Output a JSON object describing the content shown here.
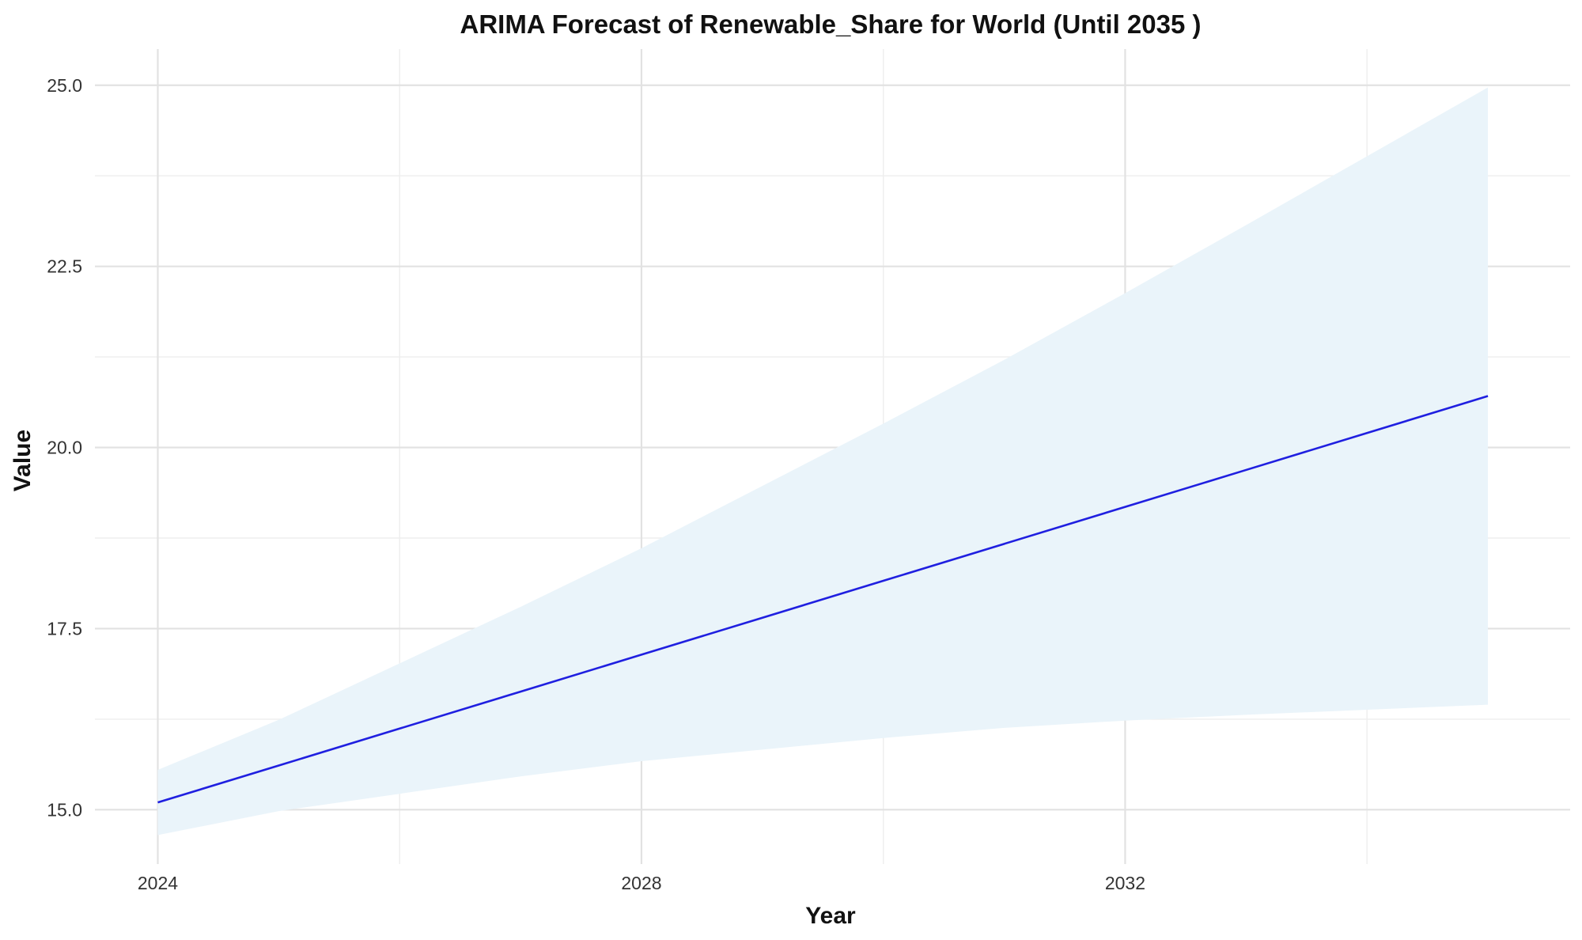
{
  "chart_data": {
    "type": "line",
    "title": "ARIMA Forecast of Renewable_Share for World (Until 2035 )",
    "xlabel": "Year",
    "ylabel": "Value",
    "xlim": [
      2023.48,
      2035.68
    ],
    "ylim": [
      14.25,
      25.5
    ],
    "x_ticks": [
      2024,
      2028,
      2032
    ],
    "x_tick_labels": [
      "2024",
      "2028",
      "2032"
    ],
    "x_minor_ticks": [
      2026,
      2030,
      2034
    ],
    "y_ticks": [
      15.0,
      17.5,
      20.0,
      22.5,
      25.0
    ],
    "y_tick_labels": [
      "15.0",
      "17.5",
      "20.0",
      "22.5",
      "25.0"
    ],
    "y_minor_ticks": [
      16.25,
      18.75,
      21.25,
      23.75
    ],
    "grid": true,
    "colors": {
      "line": "#1f1fe0",
      "band": "#eaf4fa",
      "grid_major": "#e2e2e2",
      "grid_minor": "#eeeeee"
    },
    "series": [
      {
        "x": [
          2024,
          2025,
          2026,
          2027,
          2028,
          2029,
          2030,
          2031,
          2032,
          2033,
          2034,
          2035
        ],
        "values": [
          15.1,
          15.61,
          16.12,
          16.63,
          17.14,
          17.65,
          18.16,
          18.67,
          19.18,
          19.69,
          20.2,
          20.71
        ],
        "lower": [
          14.65,
          14.98,
          15.22,
          15.46,
          15.67,
          15.83,
          15.99,
          16.13,
          16.23,
          16.31,
          16.38,
          16.45
        ],
        "upper": [
          15.55,
          16.24,
          17.02,
          17.8,
          18.61,
          19.47,
          20.33,
          21.21,
          22.13,
          23.07,
          24.02,
          24.97
        ]
      }
    ]
  }
}
